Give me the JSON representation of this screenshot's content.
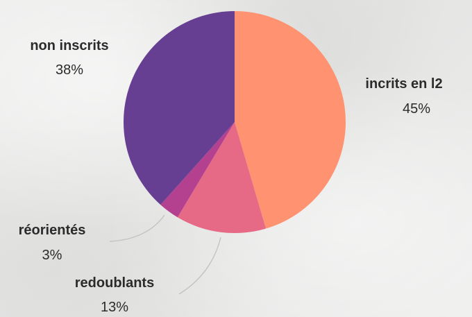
{
  "chart_data": {
    "type": "pie",
    "title": "",
    "start_angle_deg": 0,
    "direction": "clockwise",
    "slices": [
      {
        "label": "incrits en l2",
        "value": 45,
        "value_label": "45%",
        "color": "#ff9270"
      },
      {
        "label": "redoublants",
        "value": 13,
        "value_label": "13%",
        "color": "#e66a86"
      },
      {
        "label": "réorientés",
        "value": 3,
        "value_label": "3%",
        "color": "#b44090"
      },
      {
        "label": "non inscrits",
        "value": 38,
        "value_label": "38%",
        "color": "#673f92"
      }
    ],
    "label_style": "outside",
    "leader_line_color": "#c4c4c4"
  }
}
